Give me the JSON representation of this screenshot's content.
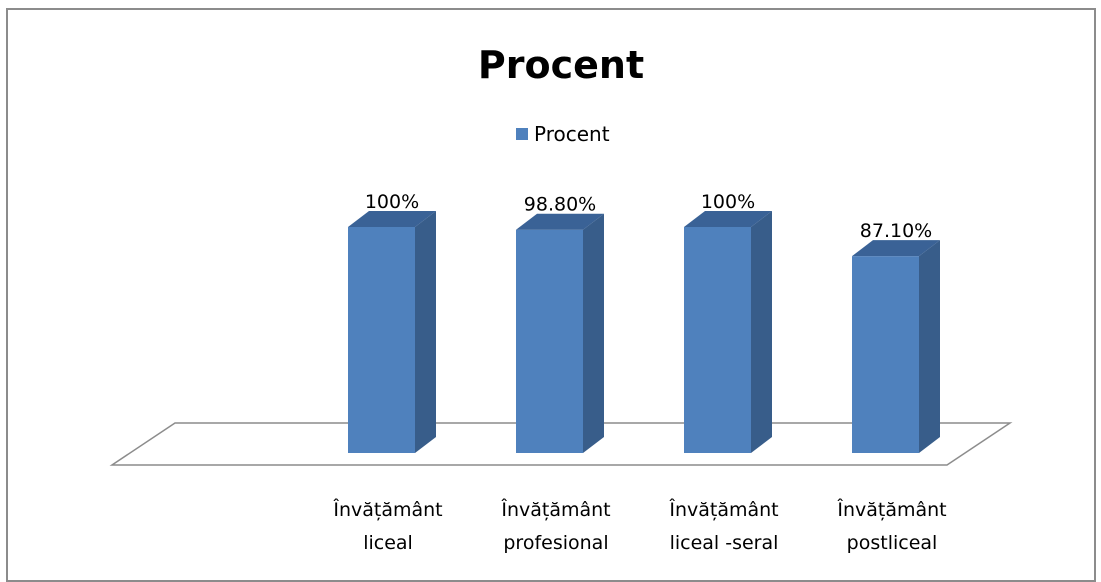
{
  "chart_data": {
    "type": "bar",
    "title": "Procent",
    "categories": [
      [
        "Învățământ",
        "liceal"
      ],
      [
        "Învățământ",
        "profesional"
      ],
      [
        "Învățământ",
        "liceal -seral"
      ],
      [
        "Învățământ",
        "postliceal"
      ]
    ],
    "series": [
      {
        "name": "Procent",
        "values": [
          100,
          98.8,
          100,
          87.1
        ],
        "labels": [
          "100%",
          "98.80%",
          "100%",
          "87.10%"
        ],
        "color": "#4F81BD",
        "side_color": "#385D8A",
        "top_color": "#3A6296"
      }
    ],
    "ylim": [
      0,
      100
    ],
    "grid": false,
    "legend": "top"
  }
}
